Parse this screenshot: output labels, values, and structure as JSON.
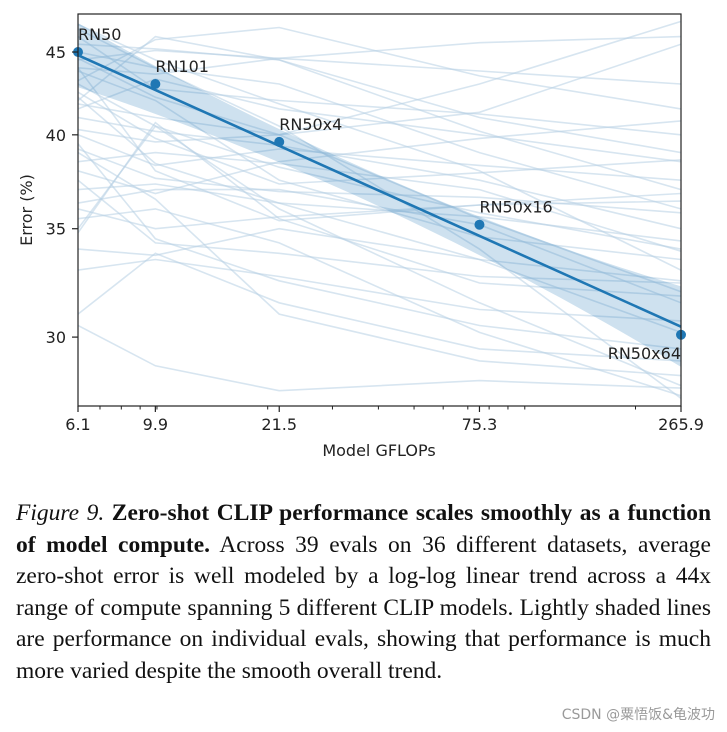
{
  "chart_data": {
    "type": "line",
    "xlabel": "Model GFLOPs",
    "ylabel": "Error (%)",
    "x_scale": "log",
    "y_scale": "log",
    "x_ticks": [
      6.1,
      9.9,
      21.5,
      75.3,
      265.9
    ],
    "x_tick_labels": [
      "6.1",
      "9.9",
      "21.5",
      "75.3",
      "265.9"
    ],
    "y_ticks": [
      30,
      35,
      40,
      45
    ],
    "y_tick_labels": [
      "30",
      "35",
      "40",
      "45"
    ],
    "xlim": [
      6.1,
      265.9
    ],
    "ylim": [
      27.2,
      47.5
    ],
    "points": [
      {
        "label": "RN50",
        "x": 6.1,
        "y": 45.0
      },
      {
        "label": "RN101",
        "x": 9.9,
        "y": 43.0
      },
      {
        "label": "RN50x4",
        "x": 21.5,
        "y": 39.6
      },
      {
        "label": "RN50x16",
        "x": 75.3,
        "y": 35.2
      },
      {
        "label": "RN50x64",
        "x": 265.9,
        "y": 30.1
      }
    ],
    "trend_line": {
      "x": [
        6.1,
        265.9
      ],
      "y": [
        44.8,
        30.45
      ]
    },
    "color": "#1f77b4",
    "background_series": [
      [
        41.5,
        43.3,
        41.5,
        40.0,
        38.5
      ],
      [
        38.0,
        36.8,
        38.5,
        39.8,
        40.8
      ],
      [
        44.5,
        45.1,
        44.6,
        43.8,
        43.0
      ],
      [
        43.8,
        42.0,
        37.5,
        34.6,
        33.5
      ],
      [
        40.3,
        39.6,
        40.0,
        41.3,
        45.5
      ],
      [
        36.3,
        37.0,
        37.0,
        35.2,
        31.5
      ],
      [
        34.0,
        33.7,
        35.0,
        33.5,
        30.2
      ],
      [
        35.0,
        40.5,
        36.0,
        31.5,
        28.0
      ],
      [
        46.5,
        44.0,
        40.5,
        34.0,
        27.5
      ],
      [
        42.2,
        38.4,
        36.3,
        35.6,
        34.4
      ],
      [
        39.5,
        34.5,
        32.5,
        30.5,
        29.5
      ],
      [
        44.0,
        38.0,
        35.4,
        36.2,
        36.8
      ],
      [
        30.5,
        28.8,
        27.8,
        28.2,
        27.9
      ],
      [
        41.0,
        40.2,
        39.4,
        37.5,
        35.0
      ],
      [
        45.5,
        45.2,
        44.5,
        40.2,
        37.0
      ],
      [
        33.0,
        33.5,
        32.7,
        31.2,
        30.7
      ],
      [
        42.0,
        46.0,
        44.5,
        41.0,
        39.0
      ],
      [
        37.0,
        37.3,
        36.3,
        33.5,
        32.5
      ],
      [
        44.6,
        42.2,
        40.0,
        43.0,
        47.0
      ],
      [
        39.0,
        36.5,
        31.0,
        29.0,
        28.4
      ],
      [
        36.0,
        35.0,
        35.6,
        36.2,
        36.4
      ],
      [
        43.0,
        40.5,
        38.2,
        35.8,
        34.0
      ],
      [
        34.8,
        40.7,
        35.5,
        32.4,
        31.8
      ],
      [
        46.0,
        42.7,
        42.0,
        41.2,
        40.0
      ],
      [
        38.5,
        39.0,
        38.4,
        37.0,
        33.9
      ],
      [
        41.8,
        41.0,
        40.0,
        35.5,
        32.0
      ],
      [
        44.0,
        43.6,
        44.6,
        45.6,
        46.0
      ],
      [
        31.0,
        33.8,
        31.5,
        29.5,
        29.0
      ],
      [
        40.0,
        38.3,
        39.2,
        38.3,
        37.5
      ],
      [
        45.0,
        44.0,
        43.0,
        39.0,
        36.0
      ],
      [
        37.5,
        34.3,
        33.8,
        32.7,
        32.4
      ],
      [
        42.5,
        39.8,
        37.3,
        37.9,
        38.6
      ],
      [
        35.5,
        36.0,
        34.3,
        30.2,
        27.6
      ],
      [
        43.2,
        45.8,
        46.6,
        43.5,
        41.5
      ],
      [
        39.2,
        37.6,
        36.9,
        36.6,
        35.8
      ],
      [
        46.8,
        44.5,
        41.8,
        38.0,
        33.0
      ]
    ]
  },
  "caption": {
    "figure_label": "Figure 9.",
    "bold_text": "Zero-shot CLIP performance scales smoothly as a function of model compute.",
    "body_text": "Across 39 evals on 36 different datasets, average zero-shot error is well modeled by a log-log linear trend across a 44x range of compute spanning 5 different CLIP models. Lightly shaded lines are performance on individual evals, showing that performance is much more varied despite the smooth overall trend."
  },
  "watermark": "CSDN @粟悟饭&龟波功"
}
